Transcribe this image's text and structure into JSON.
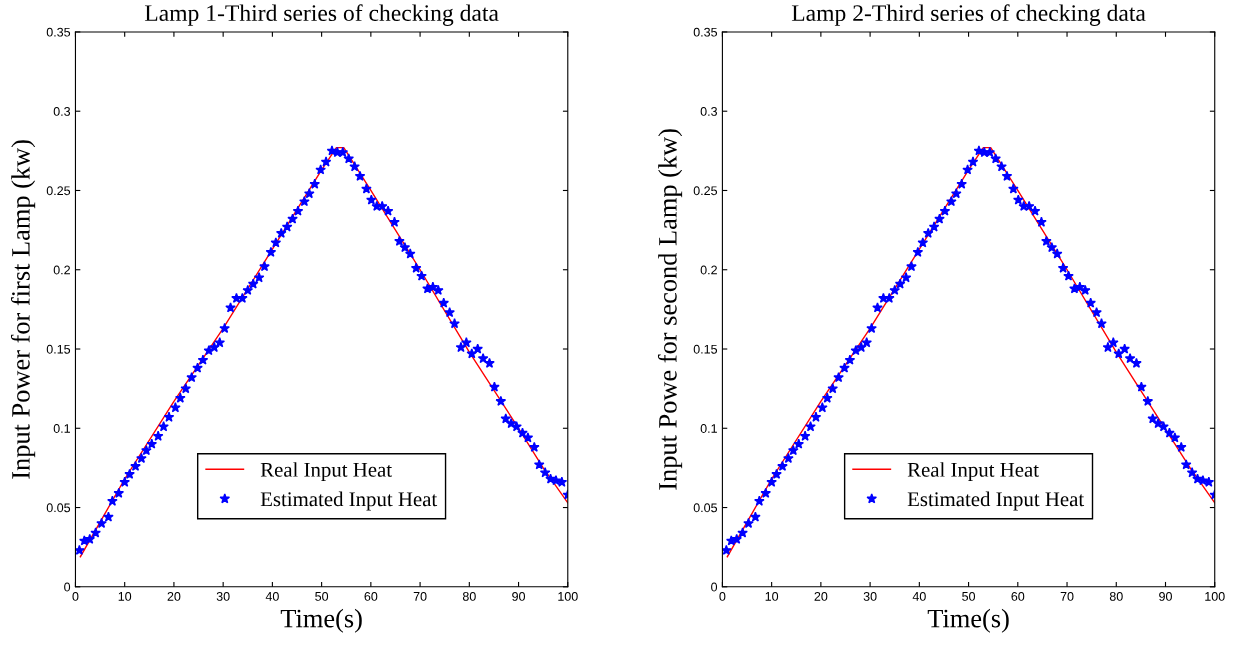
{
  "chart_data": [
    {
      "type": "line",
      "title": "Lamp 1-Third series of checking data",
      "xlabel": "Time(s)",
      "ylabel": "Input Power for first Lamp (kw)",
      "xlim": [
        0,
        100
      ],
      "ylim": [
        0,
        0.35
      ],
      "xticks": [
        0,
        10,
        20,
        30,
        40,
        50,
        60,
        70,
        80,
        90,
        100
      ],
      "yticks": [
        0,
        0.05,
        0.1,
        0.15,
        0.2,
        0.25,
        0.3,
        0.35
      ],
      "grid": false,
      "legend": "bottom",
      "series": [
        {
          "name": "Real Input Heat",
          "color": "#ff0000",
          "marker": "none",
          "line_style": "solid",
          "x": [
            1,
            10,
            20,
            30,
            40,
            50,
            53,
            54.5,
            60,
            70,
            80,
            90,
            95,
            100
          ],
          "values": [
            0.019,
            0.068,
            0.117,
            0.163,
            0.213,
            0.263,
            0.277,
            0.277,
            0.25,
            0.2,
            0.148,
            0.1,
            0.075,
            0.053
          ]
        },
        {
          "name": "Estimated Input Heat",
          "type": "scatter",
          "color": "#0000ff",
          "marker": "star",
          "x": [
            0.8,
            1.8,
            2.9,
            4.1,
            5.3,
            6.7,
            7.5,
            8.8,
            10,
            11,
            12.2,
            13.4,
            14.4,
            15.5,
            16.8,
            17.9,
            19,
            20.3,
            21.3,
            22.4,
            23.6,
            24.8,
            25.9,
            27.1,
            28.2,
            29.3,
            30.3,
            31.5,
            32.7,
            33.9,
            35,
            36.1,
            37.3,
            38.4,
            39.7,
            40.7,
            41.8,
            43,
            44.1,
            45.2,
            46.5,
            47.5,
            48.6,
            49.8,
            50.9,
            52.1,
            53.2,
            54.3,
            55.5,
            56.7,
            57.8,
            59.1,
            60.1,
            61.2,
            62.3,
            63.5,
            64.8,
            65.8,
            66.9,
            68,
            69.2,
            70.3,
            71.5,
            72.6,
            73.7,
            74.8,
            76,
            77,
            78.3,
            79.4,
            80.5,
            81.7,
            82.8,
            84.1,
            85.1,
            86.4,
            87.4,
            88.5,
            89.6,
            90.8,
            91.9,
            93.2,
            94.2,
            95.4,
            96.5,
            97.6,
            98.8,
            100
          ],
          "values": [
            0.023,
            0.029,
            0.03,
            0.034,
            0.04,
            0.044,
            0.054,
            0.059,
            0.066,
            0.071,
            0.076,
            0.081,
            0.086,
            0.09,
            0.095,
            0.101,
            0.107,
            0.113,
            0.119,
            0.125,
            0.132,
            0.138,
            0.143,
            0.149,
            0.151,
            0.154,
            0.163,
            0.176,
            0.182,
            0.182,
            0.187,
            0.191,
            0.195,
            0.202,
            0.211,
            0.217,
            0.223,
            0.227,
            0.232,
            0.237,
            0.243,
            0.248,
            0.254,
            0.263,
            0.268,
            0.275,
            0.274,
            0.274,
            0.27,
            0.265,
            0.259,
            0.251,
            0.244,
            0.24,
            0.24,
            0.237,
            0.23,
            0.218,
            0.214,
            0.21,
            0.201,
            0.196,
            0.188,
            0.189,
            0.187,
            0.179,
            0.173,
            0.166,
            0.151,
            0.154,
            0.147,
            0.15,
            0.144,
            0.141,
            0.126,
            0.117,
            0.106,
            0.103,
            0.101,
            0.097,
            0.094,
            0.088,
            0.077,
            0.072,
            0.068,
            0.067,
            0.066,
            0.058
          ]
        }
      ]
    },
    {
      "type": "line",
      "title": "Lamp 2-Third series of checking data",
      "xlabel": "Time(s)",
      "ylabel": "Input Powe for second Lamp (kw)",
      "xlim": [
        0,
        100
      ],
      "ylim": [
        0,
        0.35
      ],
      "xticks": [
        0,
        10,
        20,
        30,
        40,
        50,
        60,
        70,
        80,
        90,
        100
      ],
      "yticks": [
        0,
        0.05,
        0.1,
        0.15,
        0.2,
        0.25,
        0.3,
        0.35
      ],
      "grid": false,
      "legend": "bottom",
      "series": [
        {
          "name": "Real Input Heat",
          "color": "#ff0000",
          "marker": "none",
          "line_style": "solid",
          "x": [
            1,
            10,
            20,
            30,
            40,
            50,
            53,
            54.5,
            60,
            70,
            80,
            95,
            100
          ],
          "values": [
            0.019,
            0.068,
            0.117,
            0.163,
            0.213,
            0.263,
            0.277,
            0.277,
            0.25,
            0.2,
            0.148,
            0.075,
            0.053
          ]
        },
        {
          "name": "Estimated Input Heat",
          "type": "scatter",
          "color": "#0000ff",
          "marker": "star",
          "x": [
            0.8,
            1.8,
            2.9,
            4.1,
            5.3,
            6.7,
            7.5,
            8.8,
            10,
            11,
            12.2,
            13.4,
            14.4,
            15.5,
            16.8,
            17.9,
            19,
            20.3,
            21.3,
            22.4,
            23.6,
            24.8,
            25.9,
            27.1,
            28.2,
            29.3,
            30.3,
            31.5,
            32.7,
            33.9,
            35,
            36.1,
            37.3,
            38.4,
            39.7,
            40.7,
            41.8,
            43,
            44.1,
            45.2,
            46.5,
            47.5,
            48.6,
            49.8,
            50.9,
            52.1,
            53.2,
            54.3,
            55.5,
            56.7,
            57.8,
            59.1,
            60.1,
            61.2,
            62.3,
            63.5,
            64.8,
            65.8,
            66.9,
            68,
            69.2,
            70.3,
            71.5,
            72.6,
            73.7,
            74.8,
            76,
            77,
            78.3,
            79.4,
            80.5,
            81.7,
            82.8,
            84.1,
            85.1,
            86.4,
            87.4,
            88.5,
            89.6,
            90.8,
            91.9,
            93.2,
            94.2,
            95.4,
            96.5,
            97.6,
            98.8,
            100
          ],
          "values": [
            0.023,
            0.029,
            0.03,
            0.034,
            0.04,
            0.044,
            0.054,
            0.059,
            0.066,
            0.071,
            0.076,
            0.081,
            0.086,
            0.09,
            0.095,
            0.101,
            0.107,
            0.113,
            0.119,
            0.125,
            0.132,
            0.138,
            0.143,
            0.149,
            0.151,
            0.154,
            0.163,
            0.176,
            0.182,
            0.182,
            0.187,
            0.191,
            0.195,
            0.202,
            0.211,
            0.217,
            0.223,
            0.227,
            0.232,
            0.237,
            0.243,
            0.248,
            0.254,
            0.263,
            0.268,
            0.275,
            0.274,
            0.274,
            0.27,
            0.265,
            0.259,
            0.251,
            0.244,
            0.24,
            0.24,
            0.237,
            0.23,
            0.218,
            0.214,
            0.21,
            0.201,
            0.196,
            0.188,
            0.189,
            0.187,
            0.179,
            0.173,
            0.166,
            0.151,
            0.154,
            0.147,
            0.15,
            0.144,
            0.141,
            0.126,
            0.117,
            0.106,
            0.103,
            0.101,
            0.097,
            0.094,
            0.088,
            0.077,
            0.072,
            0.068,
            0.067,
            0.066,
            0.058
          ]
        }
      ]
    }
  ]
}
